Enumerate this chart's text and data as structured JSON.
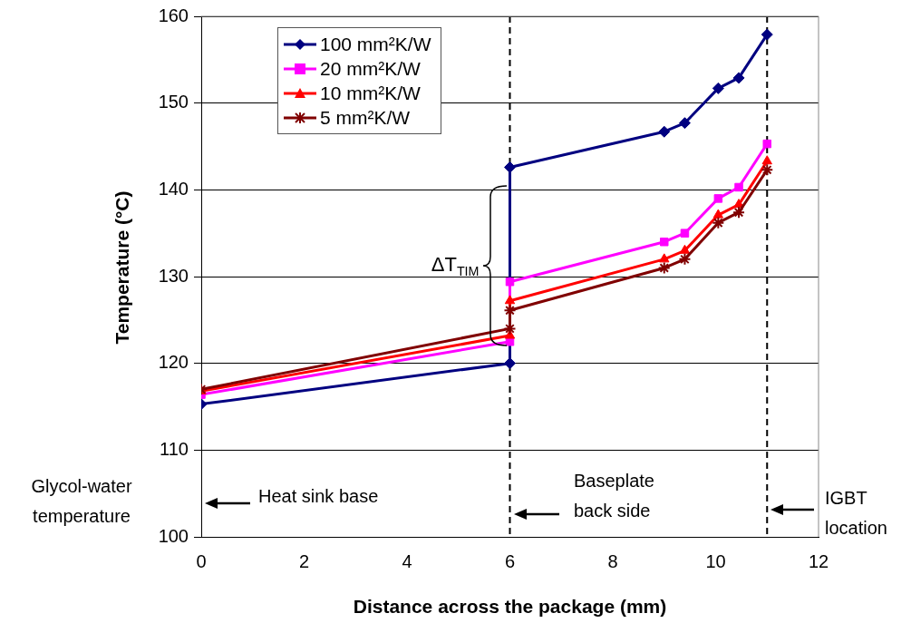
{
  "chart_data": {
    "type": "line",
    "xlabel": "Distance across the package (mm)",
    "ylabel": "Temperature (°C)",
    "xlim": [
      0,
      12
    ],
    "xticks": [
      0,
      2,
      4,
      6,
      8,
      10,
      12
    ],
    "ylim": [
      100,
      160
    ],
    "yticks": [
      100,
      110,
      120,
      130,
      140,
      150,
      160
    ],
    "grid": "y",
    "legend": "top left",
    "line_style": "solid",
    "series": [
      {
        "name": "100 mm²K/W",
        "color": "#000080",
        "marker": "diamond",
        "x": [
          0,
          6,
          6,
          9,
          9.4,
          10.05,
          10.45,
          11
        ],
        "values": [
          115.3,
          120,
          142.6,
          146.7,
          147.7,
          151.7,
          152.9,
          157.9
        ]
      },
      {
        "name": "20 mm²K/W",
        "color": "#ff00ff",
        "marker": "square",
        "x": [
          0,
          6,
          6,
          9,
          9.4,
          10.05,
          10.45,
          11
        ],
        "values": [
          116.4,
          122.5,
          129.4,
          134,
          135,
          139,
          140.3,
          145.3
        ]
      },
      {
        "name": "10 mm²K/W",
        "color": "#ff0000",
        "marker": "triangle",
        "x": [
          0,
          6,
          6,
          9,
          9.4,
          10.05,
          10.45,
          11
        ],
        "values": [
          116.8,
          123.2,
          127.2,
          132,
          133,
          137.1,
          138.3,
          143.3
        ]
      },
      {
        "name": "5 mm²K/W",
        "color": "#800000",
        "marker": "cross",
        "x": [
          0,
          6,
          6,
          9,
          9.4,
          10.05,
          10.45,
          11
        ],
        "values": [
          117,
          124,
          126.1,
          131,
          132,
          136.2,
          137.4,
          142.3
        ]
      }
    ],
    "ref_lines": [
      {
        "axis": "x",
        "value": 6,
        "color": "#000000",
        "line_style": "dashed"
      },
      {
        "axis": "x",
        "value": 11,
        "color": "#000000",
        "line_style": "dashed"
      }
    ],
    "annotations": [
      {
        "text": "ΔT$_{TIM}$",
        "x": 6,
        "y": 131.3
      },
      "Heat sink base",
      "Baseplate back side",
      "IGBT location",
      "Glycol-water temperature"
    ]
  }
}
